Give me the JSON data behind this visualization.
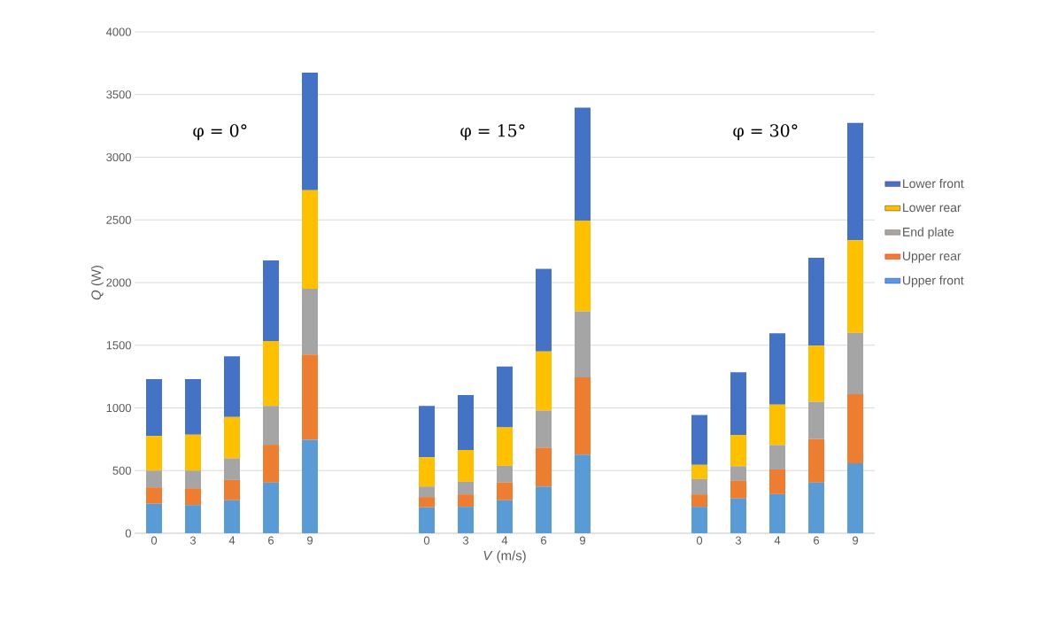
{
  "chart_data": {
    "type": "bar",
    "stacked": true,
    "xlabel": "*V* (m/s)",
    "ylabel": "*Q* (W)",
    "categories": [
      "0",
      "3",
      "4",
      "6",
      "9",
      null,
      null,
      "0",
      "3",
      "4",
      "6",
      "9",
      null,
      null,
      "0",
      "3",
      "4",
      "6",
      "9"
    ],
    "series": [
      {
        "name": "Upper front",
        "color": "#5b9bd5",
        "values": [
          235,
          225,
          263,
          404,
          746,
          null,
          null,
          207,
          211,
          263,
          373,
          627,
          null,
          null,
          211,
          277,
          312,
          404,
          559
        ]
      },
      {
        "name": "Upper rear",
        "color": "#ed7d31",
        "values": [
          131,
          134,
          162,
          302,
          679,
          null,
          null,
          82,
          99,
          141,
          310,
          617,
          null,
          null,
          99,
          141,
          197,
          347,
          551
        ]
      },
      {
        "name": "End plate",
        "color": "#a5a5a5",
        "values": [
          134,
          141,
          173,
          310,
          525,
          null,
          null,
          84,
          101,
          134,
          296,
          526,
          null,
          null,
          122,
          117,
          195,
          298,
          488
        ]
      },
      {
        "name": "Lower rear",
        "color": "#ffc000",
        "values": [
          276,
          286,
          329,
          517,
          787,
          null,
          null,
          233,
          253,
          307,
          471,
          725,
          null,
          null,
          113,
          249,
          322,
          448,
          740
        ]
      },
      {
        "name": "Lower front",
        "color": "#4472c4",
        "values": [
          454,
          444,
          484,
          643,
          938,
          null,
          null,
          410,
          439,
          486,
          660,
          900,
          null,
          null,
          399,
          500,
          570,
          700,
          935
        ]
      }
    ],
    "ylim": [
      0,
      4000
    ],
    "yticks": [
      0,
      500,
      1000,
      1500,
      2000,
      2500,
      3000,
      3500,
      4000
    ],
    "grid": "y",
    "legend": "right",
    "annotations": [
      "φ = 0°",
      "φ = 15°",
      "φ = 30°"
    ]
  }
}
